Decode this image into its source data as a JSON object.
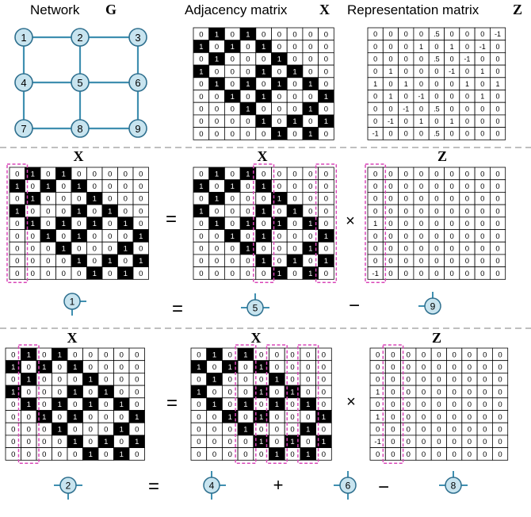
{
  "header": {
    "network_title": "Network",
    "network_symbol": "G",
    "adjacency_title": "Adjacency matrix",
    "adjacency_symbol": "X",
    "representation_title": "Representation matrix",
    "representation_symbol": "Z"
  },
  "network_graph": {
    "nodes": [
      "1",
      "2",
      "3",
      "4",
      "5",
      "6",
      "7",
      "8",
      "9"
    ],
    "edges": [
      [
        "1",
        "2"
      ],
      [
        "2",
        "3"
      ],
      [
        "1",
        "4"
      ],
      [
        "2",
        "5"
      ],
      [
        "3",
        "6"
      ],
      [
        "4",
        "5"
      ],
      [
        "5",
        "6"
      ],
      [
        "4",
        "7"
      ],
      [
        "5",
        "8"
      ],
      [
        "6",
        "9"
      ],
      [
        "7",
        "8"
      ],
      [
        "8",
        "9"
      ]
    ]
  },
  "adjacency_matrix": [
    [
      "0",
      "1",
      "0",
      "1",
      "0",
      "0",
      "0",
      "0",
      "0"
    ],
    [
      "1",
      "0",
      "1",
      "0",
      "1",
      "0",
      "0",
      "0",
      "0"
    ],
    [
      "0",
      "1",
      "0",
      "0",
      "0",
      "1",
      "0",
      "0",
      "0"
    ],
    [
      "1",
      "0",
      "0",
      "0",
      "1",
      "0",
      "1",
      "0",
      "0"
    ],
    [
      "0",
      "1",
      "0",
      "1",
      "0",
      "1",
      "0",
      "1",
      "0"
    ],
    [
      "0",
      "0",
      "1",
      "0",
      "1",
      "0",
      "0",
      "0",
      "1"
    ],
    [
      "0",
      "0",
      "0",
      "1",
      "0",
      "0",
      "0",
      "1",
      "0"
    ],
    [
      "0",
      "0",
      "0",
      "0",
      "1",
      "0",
      "1",
      "0",
      "1"
    ],
    [
      "0",
      "0",
      "0",
      "0",
      "0",
      "1",
      "0",
      "1",
      "0"
    ]
  ],
  "representation_matrix": [
    [
      "0",
      "0",
      "0",
      "0",
      ".5",
      "0",
      "0",
      "0",
      "-1"
    ],
    [
      "0",
      "0",
      "0",
      "1",
      "0",
      "1",
      "0",
      "-1",
      "0"
    ],
    [
      "0",
      "0",
      "0",
      "0",
      ".5",
      "0",
      "-1",
      "0",
      "0"
    ],
    [
      "0",
      "1",
      "0",
      "0",
      "0",
      "-1",
      "0",
      "1",
      "0"
    ],
    [
      "1",
      "0",
      "1",
      "0",
      "0",
      "0",
      "1",
      "0",
      "1"
    ],
    [
      "0",
      "1",
      "0",
      "-1",
      "0",
      "0",
      "0",
      "1",
      "0"
    ],
    [
      "0",
      "0",
      "-1",
      "0",
      ".5",
      "0",
      "0",
      "0",
      "0"
    ],
    [
      "0",
      "-1",
      "0",
      "1",
      "0",
      "1",
      "0",
      "0",
      "0"
    ],
    [
      "-1",
      "0",
      "0",
      "0",
      ".5",
      "0",
      "0",
      "0",
      "0"
    ]
  ],
  "row1": {
    "left_label": "X",
    "mid_label": "X",
    "right_label": "Z",
    "equals": "=",
    "times": "×",
    "z_column": [
      "0",
      "0",
      "0",
      "0",
      "1",
      "0",
      "0",
      "0",
      "-1"
    ],
    "star": {
      "lhs": "1",
      "eq": "=",
      "a": "5",
      "minus": "−",
      "b": "9"
    }
  },
  "row2": {
    "left_label": "X",
    "mid_label": "X",
    "right_label": "Z",
    "equals": "=",
    "times": "×",
    "z_column": [
      "0",
      "0",
      "0",
      "1",
      "0",
      "1",
      "0",
      "-1",
      "0"
    ],
    "star": {
      "lhs": "2",
      "eq": "=",
      "a": "4",
      "plus": "+",
      "b": "6",
      "minus": "−",
      "c": "8"
    }
  },
  "colors": {
    "node_fill": "#c8e4ef",
    "node_stroke": "#2e6f8e",
    "edge": "#3f8fb0",
    "highlight": "#d946b8",
    "cell_black": "#000000",
    "dashed_separator": "#999999"
  }
}
